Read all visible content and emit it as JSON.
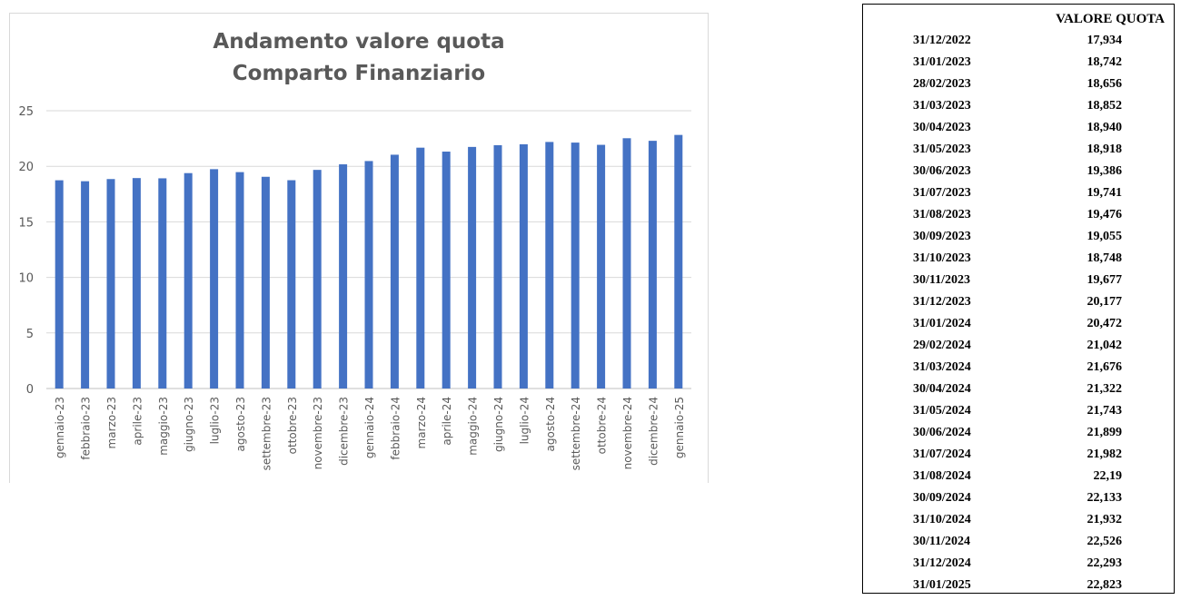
{
  "chart_data": {
    "type": "bar",
    "title": [
      "Andamento valore quota",
      "Comparto Finanziario"
    ],
    "categories": [
      "gennaio-23",
      "febbraio-23",
      "marzo-23",
      "aprile-23",
      "maggio-23",
      "giugno-23",
      "luglio-23",
      "agosto-23",
      "settembre-23",
      "ottobre-23",
      "novembre-23",
      "dicembre-23",
      "gennaio-24",
      "febbraio-24",
      "marzo-24",
      "aprile-24",
      "maggio-24",
      "giugno-24",
      "luglio-24",
      "agosto-24",
      "settembre-24",
      "ottobre-24",
      "novembre-24",
      "dicembre-24",
      "gennaio-25"
    ],
    "values": [
      18.742,
      18.656,
      18.852,
      18.94,
      18.918,
      19.386,
      19.741,
      19.476,
      19.055,
      18.748,
      19.677,
      20.177,
      20.472,
      21.042,
      21.676,
      21.322,
      21.743,
      21.899,
      21.982,
      22.19,
      22.133,
      21.932,
      22.526,
      22.293,
      22.823
    ],
    "yticks": [
      "0",
      "5",
      "10",
      "15",
      "20",
      "25"
    ],
    "ylim": [
      0,
      25
    ],
    "grid": true,
    "bar_color": "#4472c4",
    "xlabel": "",
    "ylabel": ""
  },
  "table": {
    "header": "VALORE QUOTA",
    "rows": [
      {
        "date": "31/12/2022",
        "value": "17,934"
      },
      {
        "date": "31/01/2023",
        "value": "18,742"
      },
      {
        "date": "28/02/2023",
        "value": "18,656"
      },
      {
        "date": "31/03/2023",
        "value": "18,852"
      },
      {
        "date": "30/04/2023",
        "value": "18,940"
      },
      {
        "date": "31/05/2023",
        "value": "18,918"
      },
      {
        "date": "30/06/2023",
        "value": "19,386"
      },
      {
        "date": "31/07/2023",
        "value": "19,741"
      },
      {
        "date": "31/08/2023",
        "value": "19,476"
      },
      {
        "date": "30/09/2023",
        "value": "19,055"
      },
      {
        "date": "31/10/2023",
        "value": "18,748"
      },
      {
        "date": "30/11/2023",
        "value": "19,677"
      },
      {
        "date": "31/12/2023",
        "value": "20,177"
      },
      {
        "date": "31/01/2024",
        "value": "20,472"
      },
      {
        "date": "29/02/2024",
        "value": "21,042"
      },
      {
        "date": "31/03/2024",
        "value": "21,676"
      },
      {
        "date": "30/04/2024",
        "value": "21,322"
      },
      {
        "date": "31/05/2024",
        "value": "21,743"
      },
      {
        "date": "30/06/2024",
        "value": "21,899"
      },
      {
        "date": "31/07/2024",
        "value": "21,982"
      },
      {
        "date": "31/08/2024",
        "value": "22,19"
      },
      {
        "date": "30/09/2024",
        "value": "22,133"
      },
      {
        "date": "31/10/2024",
        "value": "21,932"
      },
      {
        "date": "30/11/2024",
        "value": "22,526"
      },
      {
        "date": "31/12/2024",
        "value": "22,293"
      },
      {
        "date": "31/01/2025",
        "value": "22,823"
      }
    ]
  }
}
